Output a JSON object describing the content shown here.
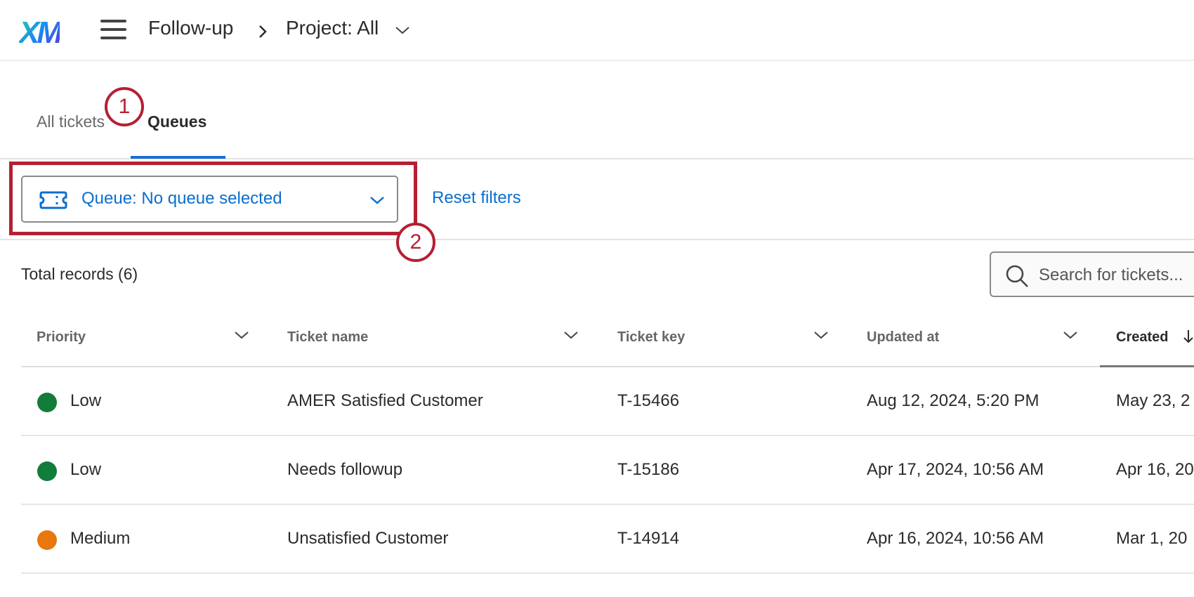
{
  "header": {
    "logo": "XM",
    "breadcrumb": [
      "Follow-up",
      "Project: All"
    ]
  },
  "tabs": [
    {
      "label": "All tickets",
      "active": false
    },
    {
      "label": "Queues",
      "active": true
    }
  ],
  "annotations": [
    "1",
    "2"
  ],
  "filters": {
    "queue_label": "Queue: No queue selected",
    "reset_label": "Reset filters",
    "queue_icon": "ticket-icon"
  },
  "total_records": "Total records (6)",
  "search": {
    "placeholder": "Search for tickets..."
  },
  "table": {
    "columns": [
      "Priority",
      "Ticket name",
      "Ticket key",
      "Updated at",
      "Created"
    ],
    "sorted_column": "Created",
    "rows": [
      {
        "priority": "Low",
        "color": "#127c3a",
        "name": "AMER Satisfied Customer",
        "key": "T-15466",
        "updated": "Aug 12, 2024, 5:20 PM",
        "created": "May 23, 2"
      },
      {
        "priority": "Low",
        "color": "#127c3a",
        "name": "Needs followup",
        "key": "T-15186",
        "updated": "Apr 17, 2024, 10:56 AM",
        "created": "Apr 16, 20"
      },
      {
        "priority": "Medium",
        "color": "#e8770e",
        "name": "Unsatisfied Customer",
        "key": "T-14914",
        "updated": "Apr 16, 2024, 10:56 AM",
        "created": "Mar 1, 20"
      }
    ]
  },
  "colors": {
    "accent": "#0b6ed0",
    "annotation": "#b51f33"
  }
}
